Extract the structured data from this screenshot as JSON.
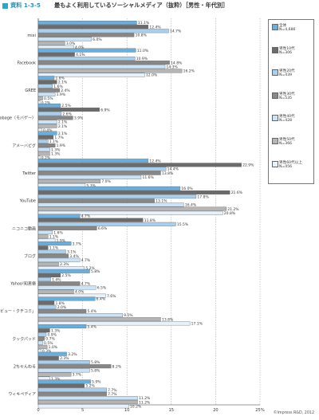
{
  "header": {
    "label": "資料 1-3-5",
    "title": "最もよく利用しているソーシャルメディア（抜粋）［男性・年代別］"
  },
  "copyright": "©Impress R&D, 2012",
  "chart_data": {
    "type": "bar",
    "orientation": "horizontal",
    "title": "最もよく利用しているソーシャルメディア（抜粋）［男性・年代別］",
    "unit": "%",
    "xlim": [
      0,
      25
    ],
    "ticks": [
      0,
      5,
      10,
      15,
      20,
      25
    ],
    "tick_labels": [
      "0",
      "5",
      "10",
      "15",
      "20",
      "25%"
    ],
    "grid": true,
    "legend_position": "top-right",
    "categories": [
      "mixi",
      "Facebook",
      "GREE",
      "Mobage（モバゲー）",
      "アメーバピグ",
      "Twitter",
      "YouTube",
      "ニコニコ動画",
      "ブログ",
      "Yahoo!知恵袋",
      "価格.comの「レビュー・クチコミ」",
      "クックパッド",
      "2ちゃんねる",
      "ウィキペディア"
    ],
    "series": [
      {
        "name": "全体",
        "n": "N=4,686",
        "color": "#6aaedd",
        "values": [
          11.1,
          11.0,
          1.8,
          2.5,
          2.1,
          12.4,
          16.0,
          4.7,
          3.7,
          5.8,
          6.4,
          5.4,
          3.2,
          5.9
        ]
      },
      {
        "name": "男性10代",
        "n": "N=306",
        "color": "#6b6b6b",
        "values": [
          12.4,
          4.1,
          2.1,
          6.9,
          1.7,
          22.9,
          21.6,
          11.8,
          1.1,
          2.5,
          1.8,
          1.3,
          2.3,
          5.2
        ]
      },
      {
        "name": "男性20代",
        "n": "N=439",
        "color": "#a9cfee",
        "values": [
          14.7,
          10.9,
          1.6,
          2.6,
          1.1,
          14.4,
          17.8,
          15.5,
          3.1,
          1.4,
          2.0,
          0.9,
          5.8,
          7.7
        ]
      },
      {
        "name": "男性30代",
        "n": "N=535",
        "color": "#878787",
        "values": [
          10.8,
          14.8,
          2.4,
          3.9,
          1.9,
          13.8,
          13.1,
          6.6,
          3.4,
          4.7,
          5.4,
          0.7,
          8.2,
          7.7
        ]
      },
      {
        "name": "男性40代",
        "n": "N=428",
        "color": "#cbe3f6",
        "values": [
          6.0,
          14.3,
          1.9,
          2.1,
          1.3,
          11.6,
          16.4,
          1.6,
          4.7,
          6.5,
          9.5,
          0.5,
          5.8,
          11.2
        ]
      },
      {
        "name": "男性50代",
        "n": "N=366",
        "color": "#b5b5b5",
        "values": [
          3.0,
          16.2,
          0.5,
          2.1,
          1.3,
          7.0,
          21.2,
          1.1,
          2.3,
          4.0,
          13.8,
          1.0,
          3.7,
          11.2
        ]
      },
      {
        "name": "男性60代以上",
        "n": "N=456",
        "color": "#e6f2fb",
        "values": [
          4.0,
          12.0,
          0.2,
          0.4,
          0.2,
          5.3,
          20.8,
          1.9,
          5.2,
          7.6,
          17.1,
          0.3,
          1.3,
          10.2
        ]
      }
    ]
  }
}
